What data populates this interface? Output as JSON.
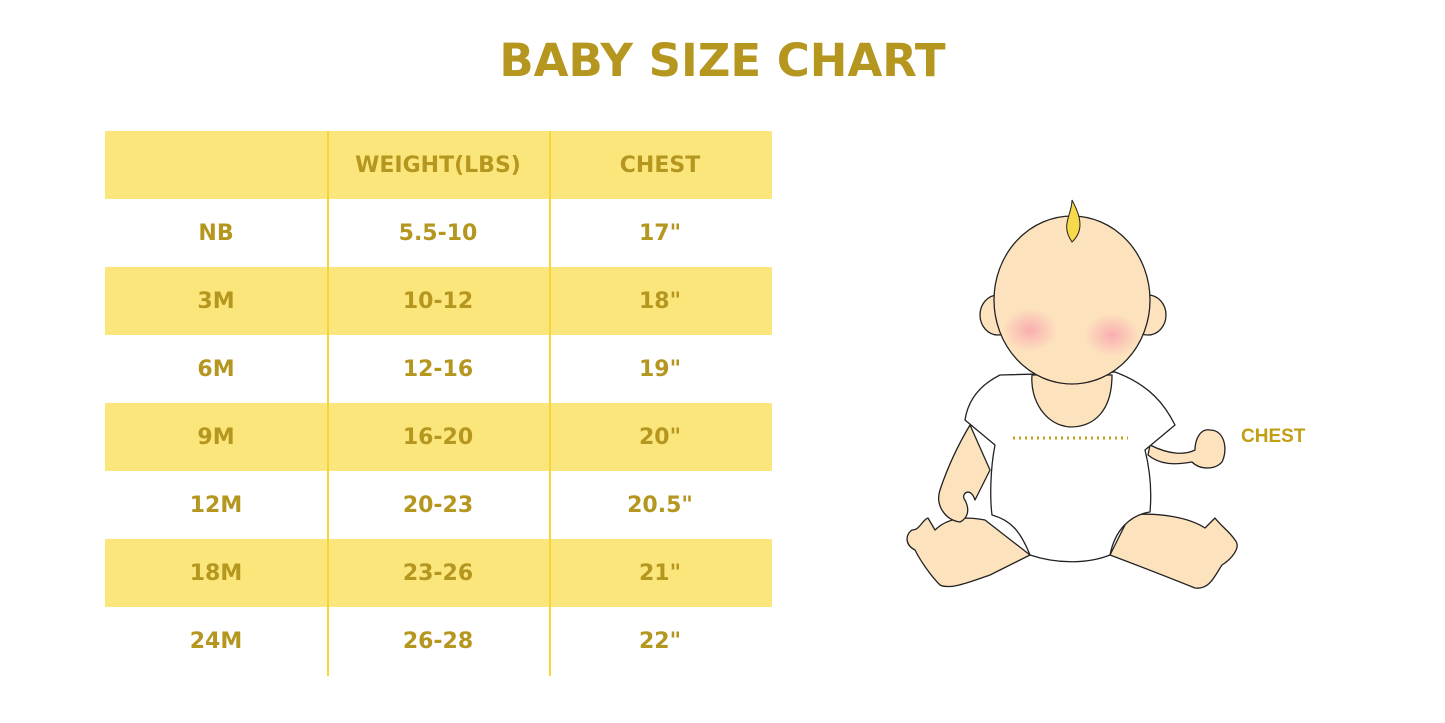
{
  "title": "BABY SIZE CHART",
  "table": {
    "headers": [
      "",
      "WEIGHT(LBS)",
      "CHEST"
    ],
    "rows": [
      [
        "NB",
        "5.5-10",
        "17\""
      ],
      [
        "3M",
        "10-12",
        "18\""
      ],
      [
        "6M",
        "12-16",
        "19\""
      ],
      [
        "9M",
        "16-20",
        "20\""
      ],
      [
        "12M",
        "20-23",
        "20.5\""
      ],
      [
        "18M",
        "23-26",
        "21\""
      ],
      [
        "24M",
        "26-28",
        "22\""
      ]
    ]
  },
  "illustration": {
    "chest_label": "CHEST"
  },
  "colors": {
    "text": "#b5961e",
    "row_fill": "#fbe67c",
    "divider": "#f5d53a",
    "skin": "#fde3bd"
  }
}
